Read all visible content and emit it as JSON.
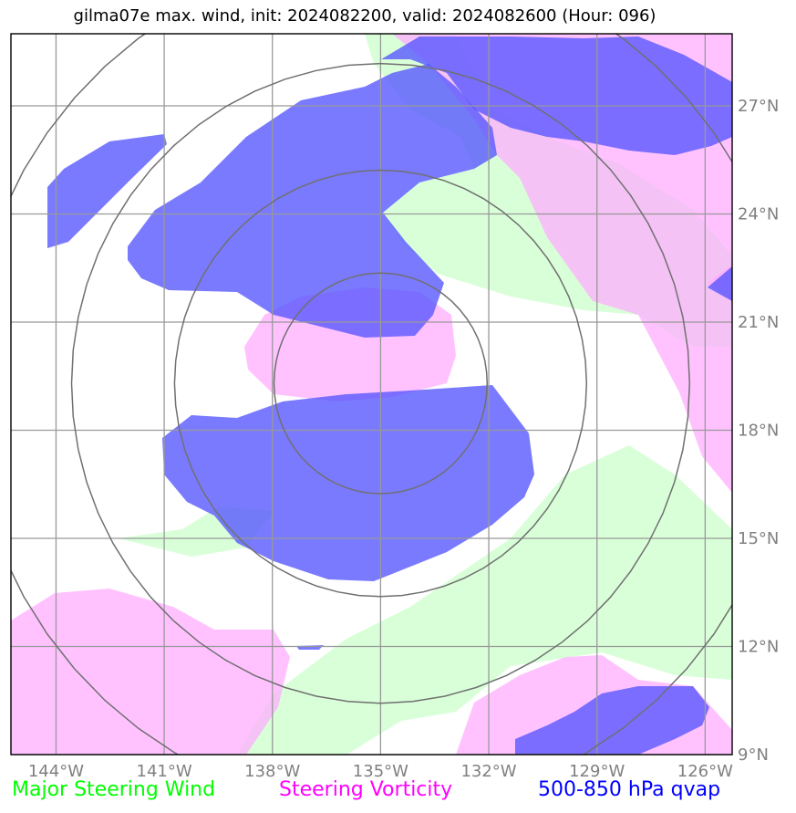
{
  "title": "gilma07e max. wind, init: 2024082200, valid: 2024082600 (Hour: 096)",
  "map": {
    "lon_labels": [
      "144°W",
      "141°W",
      "138°W",
      "135°W",
      "132°W",
      "129°W",
      "126°W"
    ],
    "lat_labels": [
      "27°N",
      "24°N",
      "21°N",
      "18°N",
      "15°N",
      "12°N",
      "9°N"
    ],
    "lon_ticks": [
      -144,
      -141,
      -138,
      -135,
      -132,
      -129,
      -126
    ],
    "lat_ticks": [
      27,
      24,
      21,
      18,
      15,
      12,
      9
    ],
    "lon_range": [
      -145.25,
      -125.25
    ],
    "lat_range": [
      9,
      29
    ],
    "center": {
      "lon": -135,
      "lat": 19.3
    },
    "range_rings_deg": [
      3,
      5.8,
      8.7,
      11.6
    ]
  },
  "layers": {
    "steering_wind": {
      "color": "#ccffcc"
    },
    "steering_vorticity": {
      "color": "#ffaaff"
    },
    "qvap": {
      "color": "#5555ff"
    }
  },
  "legend": [
    {
      "label": "Major Steering Wind",
      "color": "#00ff00"
    },
    {
      "label": "Steering Vorticity",
      "color": "#ff00ff"
    },
    {
      "label": "500-850 hPa qvap",
      "color": "#0000ff"
    }
  ]
}
